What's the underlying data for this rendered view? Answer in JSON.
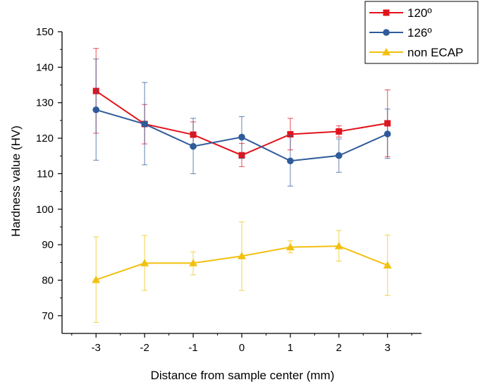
{
  "chart_data": {
    "type": "line",
    "title": "",
    "xlabel": "Distance from sample center (mm)",
    "ylabel": "Hardness value (HV)",
    "xlim": [
      -3.7,
      3.7
    ],
    "ylim": [
      65,
      150
    ],
    "x": [
      -3,
      -2,
      -1,
      0,
      1,
      2,
      3
    ],
    "xticks": [
      "-3",
      "-2",
      "-1",
      "0",
      "1",
      "2",
      "3"
    ],
    "yticks": [
      "70",
      "80",
      "90",
      "100",
      "110",
      "120",
      "130",
      "140",
      "150"
    ],
    "legend_position": "top-right",
    "grid": false,
    "series": [
      {
        "name": "120º",
        "color": "#e3131b",
        "marker": "square",
        "values": [
          133.3,
          124.0,
          121.0,
          115.2,
          121.1,
          121.9,
          124.2
        ],
        "err_upper": [
          145.3,
          129.5,
          124.6,
          118.5,
          125.6,
          123.5,
          133.6
        ],
        "err_lower": [
          121.4,
          118.4,
          117.4,
          112.0,
          116.7,
          120.3,
          114.8
        ]
      },
      {
        "name": "126º",
        "color": "#2e5b9a",
        "marker": "circle",
        "values": [
          128.0,
          124.0,
          117.7,
          120.3,
          113.6,
          115.1,
          121.2
        ],
        "err_upper": [
          142.3,
          135.7,
          125.6,
          126.1,
          120.8,
          119.8,
          128.2
        ],
        "err_lower": [
          113.8,
          112.5,
          110.0,
          114.3,
          106.5,
          110.4,
          114.3
        ]
      },
      {
        "name": "non ECAP",
        "color": "#f2c010",
        "marker": "triangle",
        "values": [
          80.1,
          84.8,
          84.8,
          86.8,
          89.3,
          89.6,
          84.2
        ],
        "err_upper": [
          92.2,
          92.6,
          88.0,
          96.4,
          91.1,
          94.0,
          92.7
        ],
        "err_lower": [
          68.1,
          77.1,
          81.5,
          77.1,
          87.7,
          85.4,
          75.7
        ]
      }
    ]
  }
}
